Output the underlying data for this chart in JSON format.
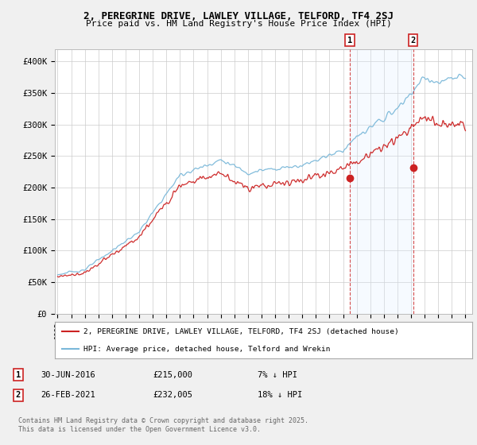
{
  "title_line1": "2, PEREGRINE DRIVE, LAWLEY VILLAGE, TELFORD, TF4 2SJ",
  "title_line2": "Price paid vs. HM Land Registry's House Price Index (HPI)",
  "ylim": [
    0,
    420000
  ],
  "yticks": [
    0,
    50000,
    100000,
    150000,
    200000,
    250000,
    300000,
    350000,
    400000
  ],
  "ytick_labels": [
    "£0",
    "£50K",
    "£100K",
    "£150K",
    "£200K",
    "£250K",
    "£300K",
    "£350K",
    "£400K"
  ],
  "hpi_color": "#7ab8d9",
  "price_color": "#cc2222",
  "shade_color": "#ddeeff",
  "legend_line1": "2, PEREGRINE DRIVE, LAWLEY VILLAGE, TELFORD, TF4 2SJ (detached house)",
  "legend_line2": "HPI: Average price, detached house, Telford and Wrekin",
  "annotation1_date": "30-JUN-2016",
  "annotation1_price": "£215,000",
  "annotation1_hpi": "7% ↓ HPI",
  "annotation2_date": "26-FEB-2021",
  "annotation2_price": "£232,005",
  "annotation2_hpi": "18% ↓ HPI",
  "footer": "Contains HM Land Registry data © Crown copyright and database right 2025.\nThis data is licensed under the Open Government Licence v3.0.",
  "bg_color": "#f0f0f0",
  "plot_bg_color": "#ffffff",
  "grid_color": "#cccccc",
  "sale1_year": 2016.5,
  "sale1_price": 215000,
  "sale2_year": 2021.15,
  "sale2_price": 232005
}
